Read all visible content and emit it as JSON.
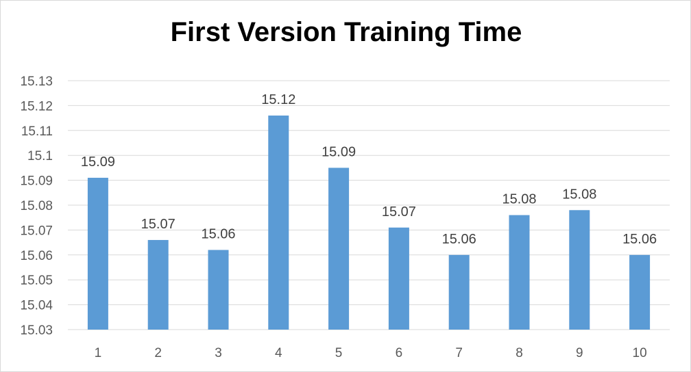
{
  "chart_data": {
    "type": "bar",
    "title": "First Version Training Time",
    "xlabel": "",
    "ylabel": "",
    "categories": [
      "1",
      "2",
      "3",
      "4",
      "5",
      "6",
      "7",
      "8",
      "9",
      "10"
    ],
    "values": [
      15.091,
      15.066,
      15.062,
      15.116,
      15.095,
      15.071,
      15.06,
      15.076,
      15.078,
      15.06
    ],
    "data_labels": [
      "15.09",
      "15.07",
      "15.06",
      "15.12",
      "15.09",
      "15.07",
      "15.06",
      "15.08",
      "15.08",
      "15.06"
    ],
    "ylim": [
      15.03,
      15.13
    ],
    "yticks": [
      "15.03",
      "15.04",
      "15.05",
      "15.06",
      "15.07",
      "15.08",
      "15.09",
      "15.1",
      "15.11",
      "15.12",
      "15.13"
    ],
    "grid": true,
    "legend": "none",
    "colors": {
      "bar": "#5b9bd5",
      "grid": "#d9d9d9",
      "tick_text": "#595959",
      "data_label_text": "#404040"
    }
  }
}
